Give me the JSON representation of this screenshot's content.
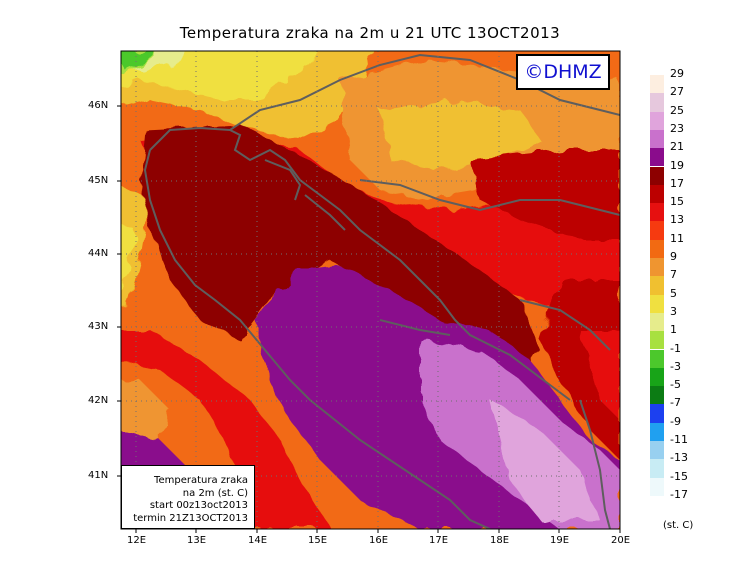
{
  "title": "Temperatura zraka na 2m u 21 UTC 13OCT2013",
  "copyright": "©DHMZ",
  "info_box": {
    "line1": "Temperatura zraka",
    "line2": "na 2m (st. C)",
    "line3": "start 00z13oct2013",
    "line4": "termin 21Z13OCT2013"
  },
  "axes": {
    "latitude_labels": [
      "46N",
      "45N",
      "44N",
      "43N",
      "42N",
      "41N"
    ],
    "longitude_labels": [
      "12E",
      "13E",
      "14E",
      "15E",
      "16E",
      "17E",
      "18E",
      "19E",
      "20E"
    ],
    "lat_range": [
      40.3,
      46.7
    ],
    "lon_range": [
      11.7,
      20.0
    ],
    "grid": "dotted"
  },
  "legend": {
    "units": "(st. C)",
    "labels": [
      "29",
      "27",
      "25",
      "23",
      "21",
      "19",
      "17",
      "15",
      "13",
      "11",
      "9",
      "7",
      "5",
      "3",
      "1",
      "-1",
      "-3",
      "-5",
      "-7",
      "-9",
      "-11",
      "-13",
      "-15",
      "-17"
    ],
    "colors": [
      "#fdeee0",
      "#e6c8dd",
      "#e0a4dc",
      "#c971cc",
      "#8a0c8c",
      "#8d0000",
      "#bc0000",
      "#e61010",
      "#f63a10",
      "#f26a12",
      "#ef9530",
      "#f0c030",
      "#f0e040",
      "#e6ec8c",
      "#a8e040",
      "#4cc82c",
      "#18a418",
      "#0c7c14",
      "#1c40f0",
      "#20a0f0",
      "#98d0f0",
      "#c8ecf4",
      "#eef9fb"
    ]
  }
}
